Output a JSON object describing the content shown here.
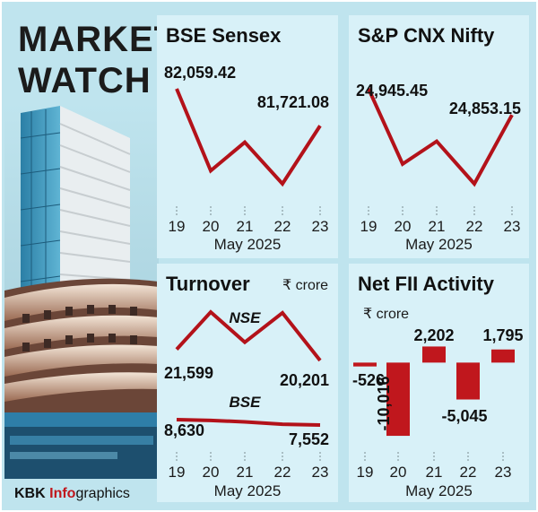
{
  "header": {
    "line1": "MARKET",
    "line2": "WATCH"
  },
  "credit": {
    "brand": "KBK",
    "info": "Info",
    "rest": "graphics"
  },
  "colors": {
    "line": "#b3121a",
    "bar": "#c0171d",
    "bg": "#bfe4ee",
    "panel": "#d8f1f8"
  },
  "x_caption": "May 2025",
  "chart_data": [
    {
      "type": "line",
      "title": "BSE Sensex",
      "xlabel": "May 2025",
      "categories": [
        "19",
        "20",
        "21",
        "22",
        "23"
      ],
      "series": [
        {
          "values": [
            82059.42,
            81310,
            81570,
            81190,
            81721.08
          ]
        }
      ],
      "data_labels": [
        {
          "index": 0,
          "text": "82,059.42"
        },
        {
          "index": 4,
          "text": "81,721.08"
        }
      ]
    },
    {
      "type": "line",
      "title": "S&P CNX Nifty",
      "xlabel": "May 2025",
      "categories": [
        "19",
        "20",
        "21",
        "22",
        "23"
      ],
      "series": [
        {
          "values": [
            24945.45,
            24680,
            24760,
            24610,
            24853.15
          ]
        }
      ],
      "data_labels": [
        {
          "index": 0,
          "text": "24,945.45"
        },
        {
          "index": 4,
          "text": "24,853.15"
        }
      ]
    },
    {
      "type": "line",
      "title": "Turnover",
      "unit": "₹ crore",
      "xlabel": "May 2025",
      "categories": [
        "19",
        "20",
        "21",
        "22",
        "23"
      ],
      "series": [
        {
          "name": "NSE",
          "values": [
            21599,
            26300,
            22500,
            26200,
            20201
          ]
        },
        {
          "name": "BSE",
          "values": [
            8630,
            8480,
            8180,
            7700,
            7552
          ]
        }
      ],
      "data_labels": [
        {
          "series": 0,
          "index": 0,
          "text": "21,599"
        },
        {
          "series": 0,
          "index": 4,
          "text": "20,201"
        },
        {
          "series": 1,
          "index": 0,
          "text": "8,630"
        },
        {
          "series": 1,
          "index": 4,
          "text": "7,552"
        }
      ]
    },
    {
      "type": "bar",
      "title": "Net FII Activity",
      "unit": "₹ crore",
      "xlabel": "May 2025",
      "categories": [
        "19",
        "20",
        "21",
        "22",
        "23"
      ],
      "values": [
        -526,
        -10016,
        2202,
        -5045,
        1795
      ],
      "value_labels": [
        "-526",
        "-10,016",
        "2,202",
        "-5,045",
        "1,795"
      ],
      "ylim": [
        -10500,
        2500
      ]
    }
  ]
}
